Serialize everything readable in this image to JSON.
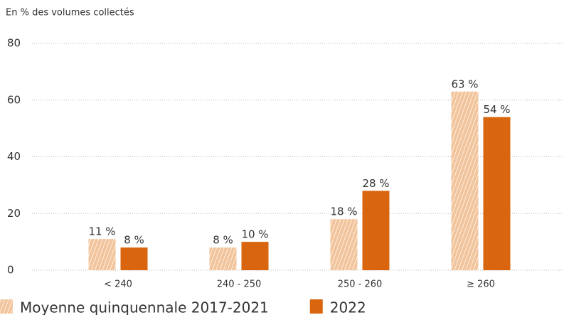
{
  "chart_data": {
    "type": "bar",
    "y_label": "En % des volumes collectés",
    "categories": [
      "< 240",
      "240 - 250",
      "250 - 260",
      "≥ 260"
    ],
    "series": [
      {
        "name": "Moyenne quinquennale 2017-2021",
        "color": "#f2c49b",
        "hatched": true,
        "values": [
          11,
          8,
          18,
          63
        ],
        "value_labels": [
          "11 %",
          "8 %",
          "18 %",
          "63 %"
        ]
      },
      {
        "name": "2022",
        "color": "#d9650f",
        "hatched": false,
        "values": [
          8,
          10,
          28,
          54
        ],
        "value_labels": [
          "8 %",
          "10 %",
          "28 %",
          "54 %"
        ]
      }
    ],
    "ylim": [
      0,
      80
    ],
    "yticks": [
      0,
      20,
      40,
      60,
      80
    ],
    "grid": true
  }
}
